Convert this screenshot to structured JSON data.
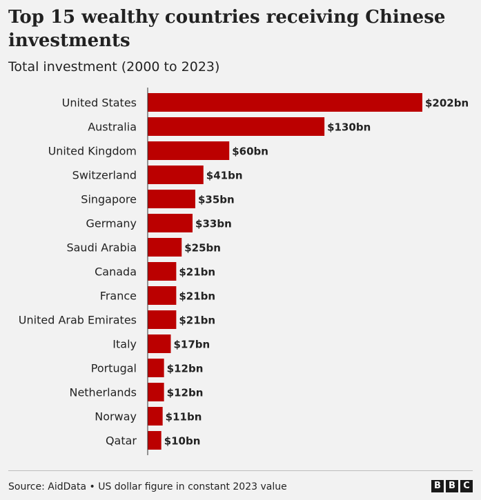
{
  "chart_data": {
    "type": "bar",
    "orientation": "horizontal",
    "title": "Top 15 wealthy countries receiving Chinese investments",
    "subtitle": "Total investment (2000 to 2023)",
    "categories": [
      "United States",
      "Australia",
      "United Kingdom",
      "Switzerland",
      "Singapore",
      "Germany",
      "Saudi Arabia",
      "Canada",
      "France",
      "United Arab Emirates",
      "Italy",
      "Portugal",
      "Netherlands",
      "Norway",
      "Qatar"
    ],
    "values": [
      202,
      130,
      60,
      41,
      35,
      33,
      25,
      21,
      21,
      21,
      17,
      12,
      12,
      11,
      10
    ],
    "value_labels": [
      "$202bn",
      "$130bn",
      "$60bn",
      "$41bn",
      "$35bn",
      "$33bn",
      "$25bn",
      "$21bn",
      "$21bn",
      "$21bn",
      "$17bn",
      "$12bn",
      "$12bn",
      "$11bn",
      "$10bn"
    ],
    "xlim": [
      0,
      202
    ],
    "unit": "$bn",
    "bar_color": "#bb0000",
    "grid": false
  },
  "footer": {
    "source": "Source: AidData • US dollar figure in constant 2023 value",
    "logo_letters": [
      "B",
      "B",
      "C"
    ]
  }
}
